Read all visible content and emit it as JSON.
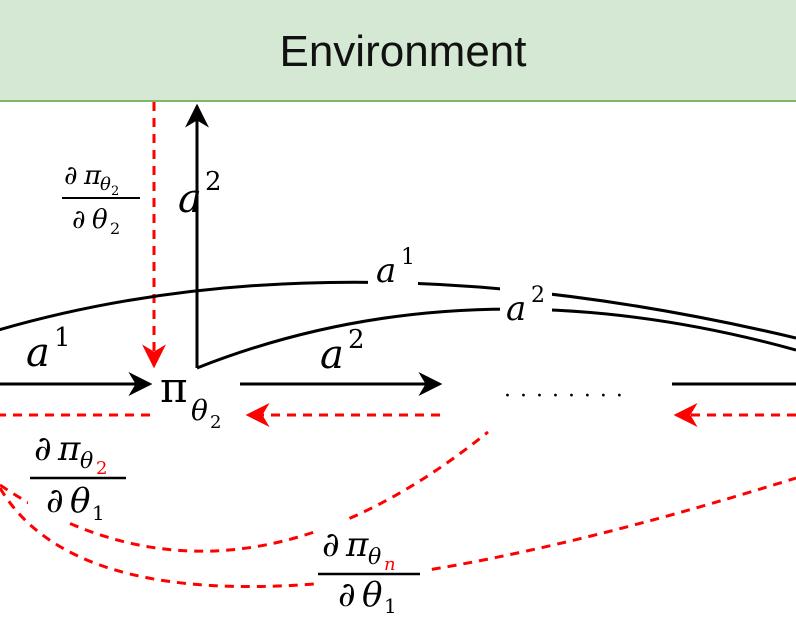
{
  "environment": {
    "label": "Environment",
    "fill": "#d5e8d4",
    "stroke": "#82b366"
  },
  "colors": {
    "forward": "#000000",
    "gradient": "#ff0000"
  },
  "policy": {
    "symbol": "π",
    "subscript": "θ",
    "index": "2"
  },
  "edges": {
    "a_superscript_1": "1",
    "a_superscript_2": "2",
    "action_symbol": "a",
    "ellipsis": "· · · · · · · ·"
  },
  "gradients": {
    "partial": "∂",
    "pi": "π",
    "theta": "θ",
    "g1": {
      "num_index": "2",
      "den_index": "2"
    },
    "g2": {
      "num_index": "2",
      "den_index": "1"
    },
    "g3": {
      "num_index": "n",
      "den_index": "1"
    }
  }
}
